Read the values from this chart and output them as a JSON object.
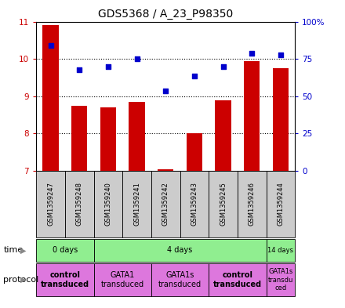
{
  "title": "GDS5368 / A_23_P98350",
  "samples": [
    "GSM1359247",
    "GSM1359248",
    "GSM1359240",
    "GSM1359241",
    "GSM1359242",
    "GSM1359243",
    "GSM1359245",
    "GSM1359246",
    "GSM1359244"
  ],
  "bar_values": [
    10.9,
    8.75,
    8.7,
    8.85,
    7.05,
    8.0,
    8.9,
    9.95,
    9.75
  ],
  "dot_values": [
    10.35,
    9.7,
    9.8,
    10.0,
    9.15,
    9.55,
    9.8,
    10.15,
    10.1
  ],
  "bar_color": "#cc0000",
  "dot_color": "#0000cc",
  "ylim_left": [
    7,
    11
  ],
  "ylim_right": [
    0,
    100
  ],
  "yticks_left": [
    7,
    8,
    9,
    10,
    11
  ],
  "yticks_right": [
    0,
    25,
    50,
    75,
    100
  ],
  "ytick_labels_right": [
    "0",
    "25",
    "50",
    "75",
    "100%"
  ],
  "time_extents": [
    [
      0,
      2,
      "0 days"
    ],
    [
      2,
      8,
      "4 days"
    ],
    [
      8,
      9,
      "14 days"
    ]
  ],
  "protocol_groups": [
    {
      "label": "control\ntransduced",
      "start": 0,
      "end": 2,
      "bold": true
    },
    {
      "label": "GATA1\ntransduced",
      "start": 2,
      "end": 4,
      "bold": false
    },
    {
      "label": "GATA1s\ntransduced",
      "start": 4,
      "end": 6,
      "bold": false
    },
    {
      "label": "control\ntransduced",
      "start": 6,
      "end": 8,
      "bold": true
    },
    {
      "label": "GATA1s\ntransdu\nced",
      "start": 8,
      "end": 9,
      "bold": false
    }
  ],
  "bar_bottom": 7,
  "sample_bg": "#cccccc",
  "time_bg": "#90ee90",
  "proto_bg": "#dd77dd",
  "fig_bg": "#ffffff"
}
